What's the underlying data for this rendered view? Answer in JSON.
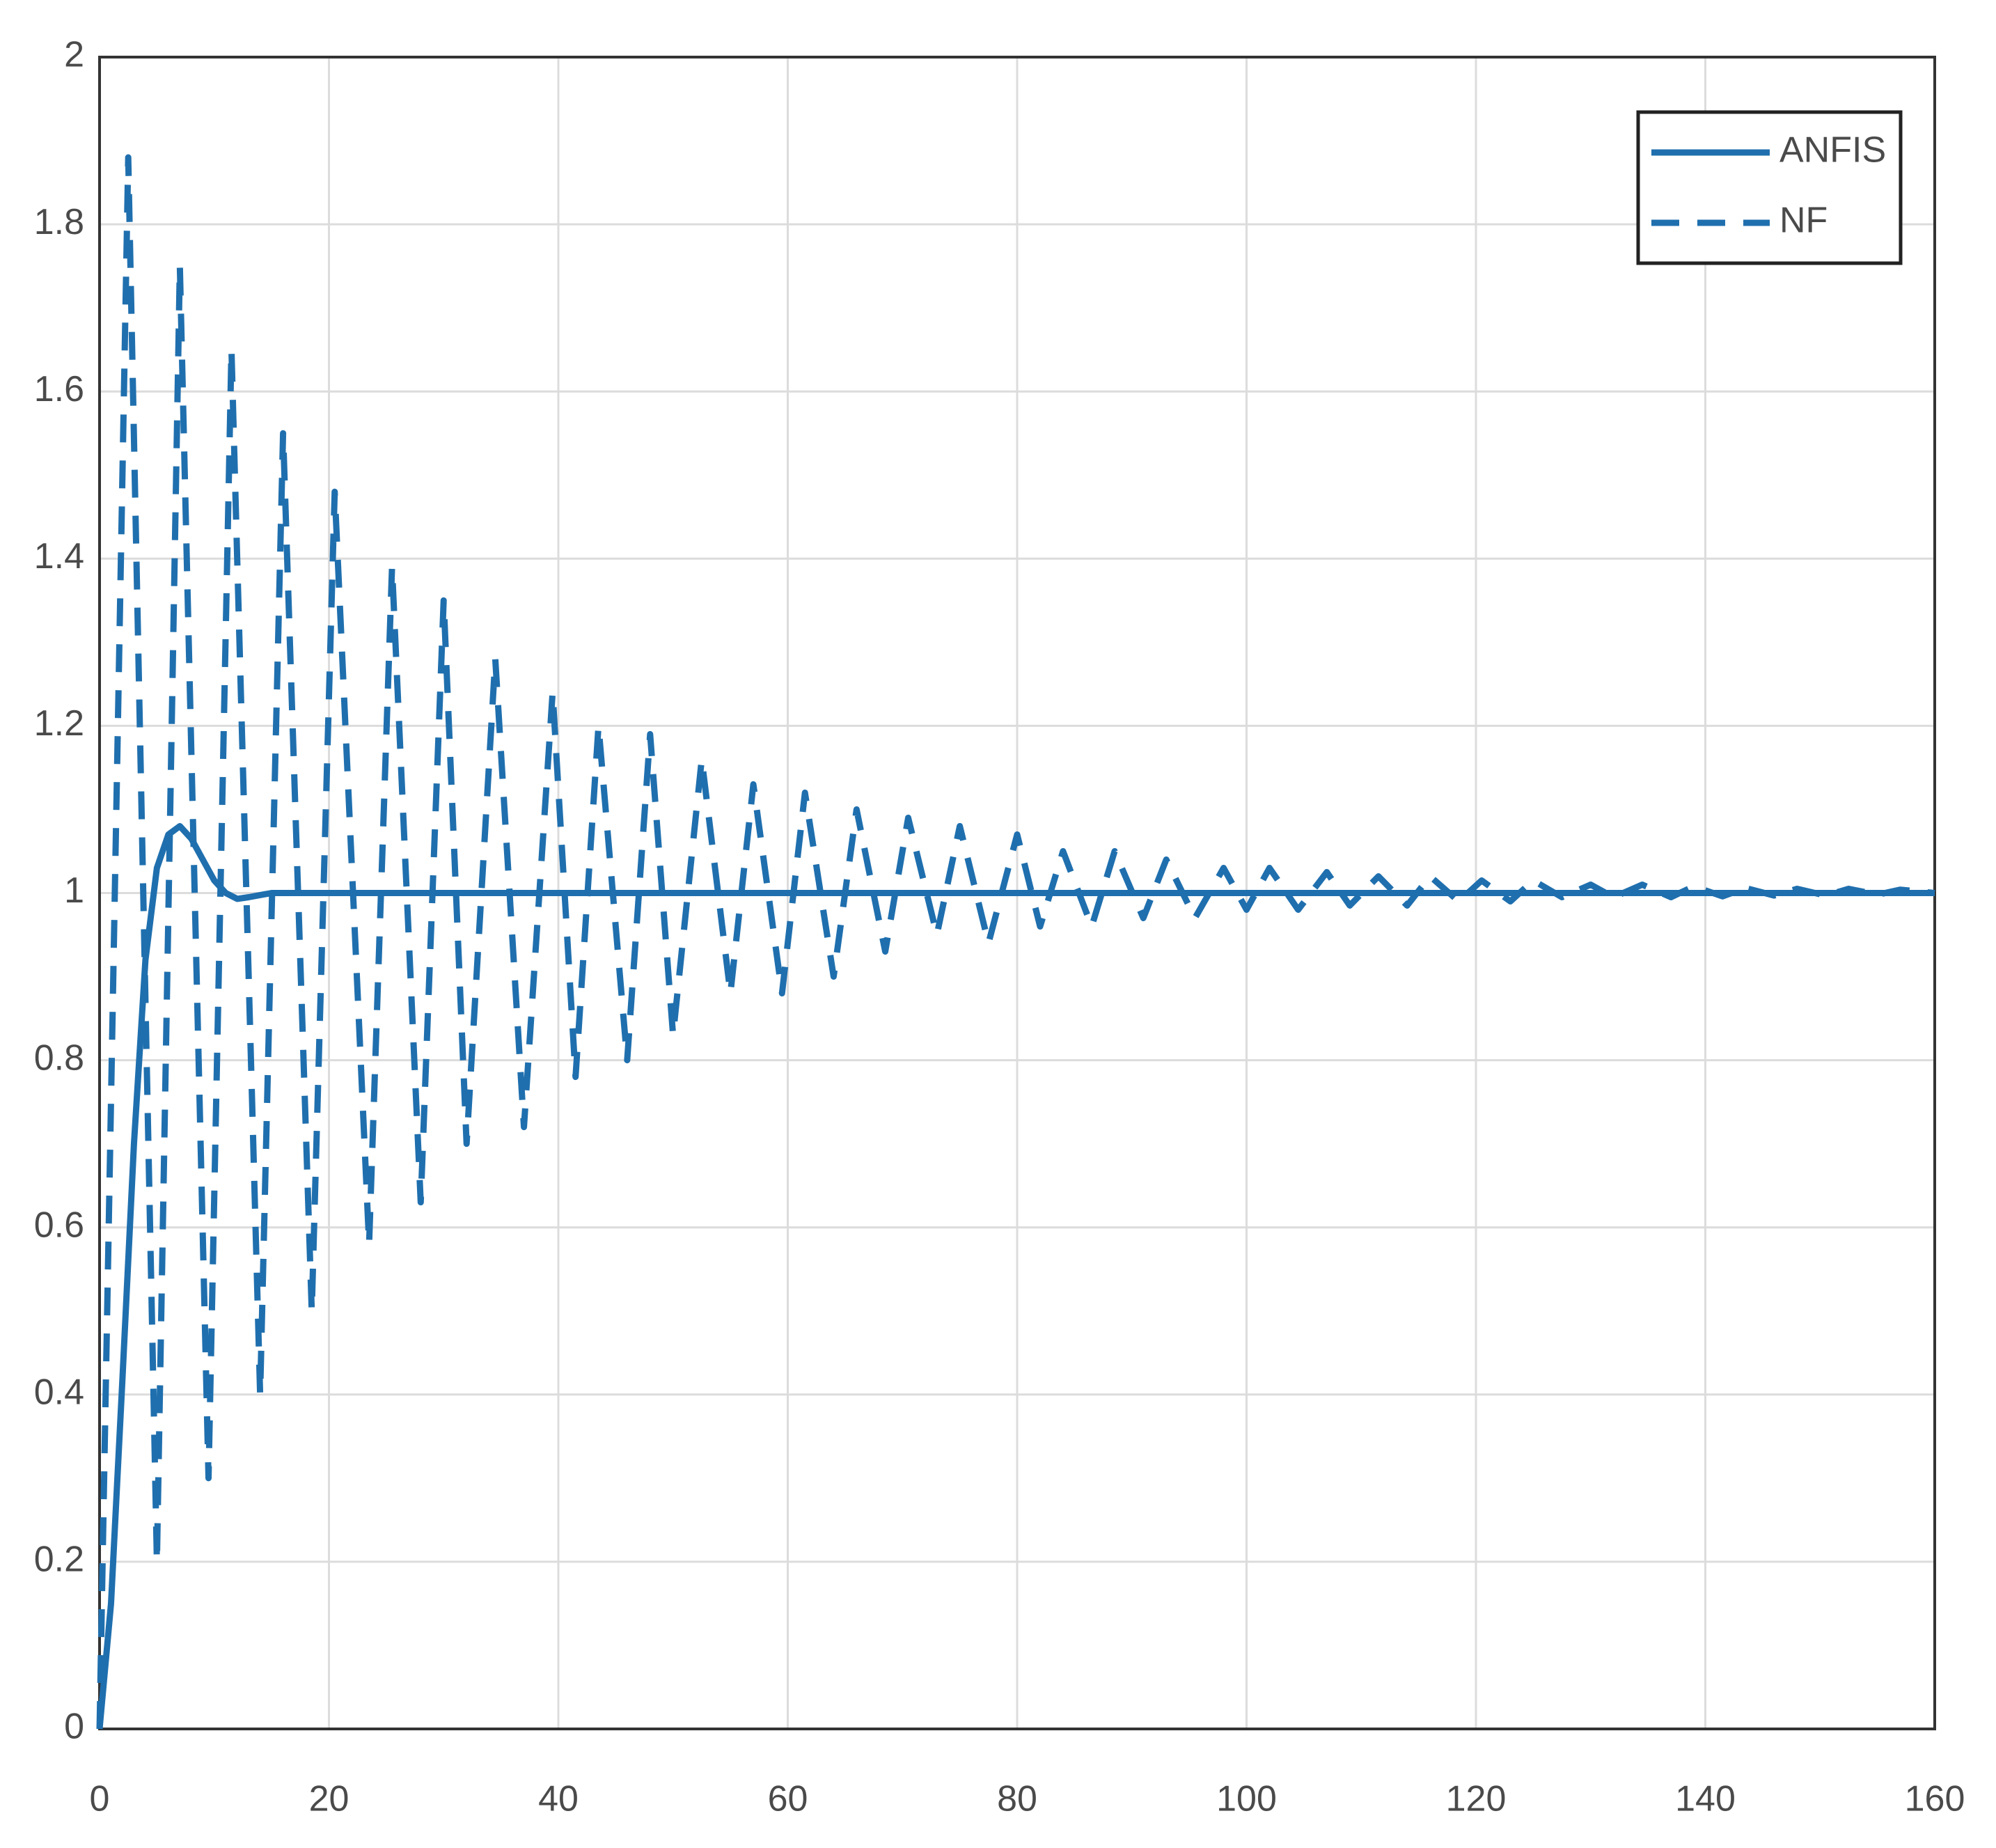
{
  "chart_data": {
    "type": "line",
    "xlim": [
      0,
      160
    ],
    "xticks": [
      0,
      20,
      40,
      60,
      80,
      100,
      120,
      140,
      160
    ],
    "ylim": [
      0,
      2
    ],
    "yticks": [
      0,
      0.2,
      0.4,
      0.6,
      0.8,
      1,
      1.2,
      1.4,
      1.6,
      1.8,
      2
    ],
    "grid": true,
    "legend": "upper right",
    "series": [
      {
        "name": "ANFIS",
        "color": "#1f6fae",
        "linestyle": "solid",
        "x": [
          0,
          1,
          2,
          3,
          4,
          5,
          6,
          7,
          8,
          9,
          10,
          11,
          12,
          13,
          15,
          20,
          40,
          80,
          160
        ],
        "values": [
          0,
          0.15,
          0.42,
          0.7,
          0.92,
          1.03,
          1.07,
          1.08,
          1.065,
          1.04,
          1.015,
          1.0,
          0.993,
          0.995,
          1.0,
          1,
          1,
          1,
          1
        ]
      },
      {
        "name": "NF",
        "color": "#1f6fae",
        "linestyle": "dashed",
        "x": [
          0,
          2.5,
          5,
          7,
          9.5,
          11.5,
          14,
          16,
          18.5,
          20.5,
          23.5,
          25.5,
          28,
          30,
          32,
          34.5,
          37,
          39.5,
          41.5,
          43.5,
          46,
          48,
          50,
          52.5,
          55,
          57,
          59.5,
          61.5,
          64,
          66,
          68.5,
          70.5,
          73,
          75,
          77.5,
          80,
          82,
          84,
          86.5,
          88.5,
          91,
          93,
          95.5,
          98,
          100,
          102,
          104.5,
          107,
          109,
          111.5,
          114,
          116,
          118.5,
          120.5,
          123,
          125,
          127.5,
          130,
          132,
          134.5,
          137,
          139,
          141.5,
          143.5,
          146,
          148,
          150.5,
          152.5,
          155,
          157,
          160
        ],
        "values": [
          0,
          1.88,
          0.2,
          1.75,
          0.3,
          1.65,
          0.4,
          1.55,
          0.5,
          1.48,
          0.58,
          1.39,
          0.63,
          1.35,
          0.7,
          1.28,
          0.72,
          1.24,
          0.78,
          1.2,
          0.8,
          1.19,
          0.83,
          1.16,
          0.88,
          1.13,
          0.88,
          1.12,
          0.9,
          1.1,
          0.93,
          1.09,
          0.95,
          1.08,
          0.94,
          1.07,
          0.96,
          1.05,
          0.96,
          1.05,
          0.97,
          1.04,
          0.97,
          1.03,
          0.98,
          1.03,
          0.98,
          1.025,
          0.985,
          1.02,
          0.985,
          1.02,
          0.99,
          1.015,
          0.99,
          1.015,
          0.995,
          1.01,
          0.995,
          1.01,
          0.995,
          1.008,
          0.996,
          1.006,
          0.997,
          1.005,
          0.997,
          1.005,
          0.998,
          1.004,
          1.0
        ]
      }
    ]
  }
}
